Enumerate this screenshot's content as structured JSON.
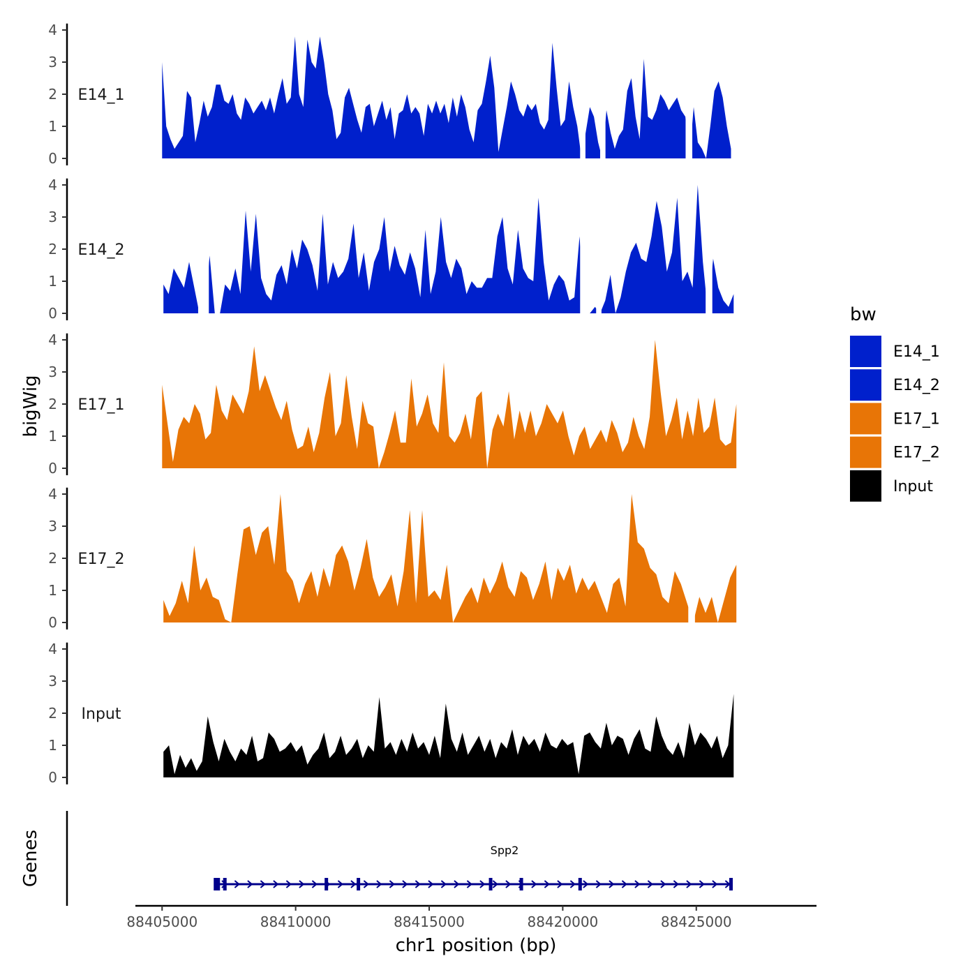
{
  "chart_data": {
    "type": "area",
    "title": "",
    "xlabel": "chr1 position (bp)",
    "ylabel": "bigWig",
    "genes_label": "Genes",
    "xlim": [
      88404000,
      88429500
    ],
    "ylim": [
      0,
      4.2
    ],
    "x_ticks": [
      88405000,
      88410000,
      88415000,
      88420000,
      88425000
    ],
    "x_tick_labels": [
      "88405000",
      "88410000",
      "88415000",
      "88420000",
      "88425000"
    ],
    "y_ticks": [
      0,
      1,
      2,
      3,
      4
    ],
    "y_tick_labels": [
      "0",
      "1",
      "2",
      "3",
      "4"
    ],
    "legend": {
      "title": "bw",
      "position": "right",
      "entries": [
        {
          "label": "E14_1",
          "color": "#0020CC"
        },
        {
          "label": "E14_2",
          "color": "#0020CC"
        },
        {
          "label": "E17_1",
          "color": "#E87506"
        },
        {
          "label": "E17_2",
          "color": "#E87506"
        },
        {
          "label": "Input",
          "color": "#000000"
        }
      ]
    },
    "series": [
      {
        "name": "E14_1",
        "color": "#0020CC",
        "start": 88405000,
        "end": 88426300,
        "values": [
          3.0,
          1.0,
          0.6,
          0.3,
          0.5,
          0.7,
          2.1,
          1.9,
          0.5,
          1.1,
          1.8,
          1.3,
          1.6,
          2.3,
          2.3,
          1.8,
          1.7,
          2.0,
          1.4,
          1.2,
          1.9,
          1.7,
          1.4,
          1.6,
          1.8,
          1.5,
          1.9,
          1.4,
          2.0,
          2.5,
          1.7,
          1.9,
          3.8,
          2.0,
          1.6,
          3.7,
          3.0,
          2.8,
          3.8,
          3.0,
          2.0,
          1.5,
          0.6,
          0.8,
          1.9,
          2.2,
          1.7,
          1.2,
          0.8,
          1.6,
          1.7,
          1.0,
          1.4,
          1.8,
          1.2,
          1.6,
          0.6,
          1.4,
          1.5,
          2.0,
          1.4,
          1.6,
          1.4,
          0.7,
          1.7,
          1.4,
          1.8,
          1.4,
          1.7,
          1.1,
          1.9,
          1.3,
          2.0,
          1.6,
          0.9,
          0.5,
          1.5,
          1.7,
          2.4,
          3.2,
          2.2,
          0.2,
          0.9,
          1.6,
          2.4,
          2.0,
          1.5,
          1.3,
          1.7,
          1.5,
          1.7,
          1.1,
          0.9,
          1.2,
          3.6,
          2.2,
          1.0,
          1.2,
          2.4,
          1.6,
          1.0,
          0.2,
          0.8,
          1.6,
          1.3,
          0.5,
          0.9,
          1.5,
          0.8,
          0.3,
          0.7,
          0.9,
          2.1,
          2.5,
          1.3,
          0.6,
          3.1,
          1.3,
          1.2,
          1.5,
          2.0,
          1.8,
          1.5,
          1.7,
          1.9,
          1.5,
          1.3,
          2.2,
          1.6,
          0.5,
          0.3,
          0.0,
          1.0,
          2.1,
          2.4,
          1.9,
          1.0,
          0.3
        ],
        "gaps": [
          [
            88420650,
            88420850
          ],
          [
            88421400,
            88421600
          ],
          [
            88424600,
            88424850
          ]
        ]
      },
      {
        "name": "E14_2",
        "color": "#0020CC",
        "start": 88405050,
        "end": 88426400,
        "values": [
          0.9,
          0.6,
          1.4,
          1.1,
          0.8,
          1.6,
          0.8,
          1.3,
          0.7,
          1.8,
          0.0,
          0.0,
          0.9,
          0.7,
          1.4,
          0.6,
          3.2,
          1.3,
          3.1,
          1.1,
          0.6,
          0.4,
          1.2,
          1.5,
          0.9,
          2.0,
          1.4,
          2.3,
          2.0,
          1.5,
          0.7,
          3.1,
          0.9,
          1.6,
          1.1,
          1.3,
          1.7,
          2.8,
          1.1,
          1.9,
          0.7,
          1.6,
          2.0,
          3.0,
          1.3,
          2.1,
          1.5,
          1.2,
          1.9,
          1.4,
          0.5,
          2.6,
          0.6,
          1.3,
          3.0,
          1.6,
          1.1,
          1.7,
          1.4,
          0.6,
          1.0,
          0.8,
          0.8,
          1.1,
          1.1,
          2.4,
          3.0,
          1.4,
          0.9,
          2.6,
          1.4,
          1.1,
          1.0,
          3.6,
          1.6,
          0.4,
          0.9,
          1.2,
          1.0,
          0.4,
          0.5,
          2.4,
          0.7,
          0.0,
          0.2,
          0.6,
          0.4,
          1.2,
          0.0,
          0.5,
          1.3,
          1.9,
          2.2,
          1.7,
          1.6,
          2.4,
          3.5,
          2.7,
          1.3,
          1.9,
          3.6,
          1.0,
          1.3,
          0.8,
          4.0,
          1.6,
          2.2,
          1.7,
          0.8,
          0.4,
          0.2,
          0.6
        ],
        "gaps": [
          [
            88406350,
            88406750
          ],
          [
            88420650,
            88420850
          ],
          [
            88421250,
            88421450
          ],
          [
            88425350,
            88425600
          ]
        ]
      },
      {
        "name": "E17_1",
        "color": "#E87506",
        "start": 88405000,
        "end": 88426500,
        "values": [
          2.6,
          1.4,
          0.2,
          1.2,
          1.6,
          1.4,
          2.0,
          1.7,
          0.9,
          1.1,
          2.6,
          1.8,
          1.5,
          2.3,
          2.0,
          1.7,
          2.4,
          3.8,
          2.4,
          2.9,
          2.4,
          1.9,
          1.5,
          2.1,
          1.2,
          0.6,
          0.7,
          1.3,
          0.5,
          1.1,
          2.2,
          3.0,
          1.0,
          1.4,
          2.9,
          1.6,
          0.6,
          2.1,
          1.4,
          1.3,
          0.0,
          0.5,
          1.1,
          1.8,
          0.8,
          0.8,
          2.8,
          1.3,
          1.7,
          2.3,
          1.4,
          1.1,
          3.3,
          1.0,
          0.8,
          1.1,
          1.7,
          0.9,
          2.2,
          2.4,
          0.0,
          1.2,
          1.7,
          1.3,
          2.4,
          0.9,
          1.8,
          1.1,
          1.8,
          1.0,
          1.4,
          2.0,
          1.7,
          1.4,
          1.8,
          1.0,
          0.4,
          1.0,
          1.3,
          0.6,
          0.9,
          1.2,
          0.8,
          1.5,
          1.1,
          0.5,
          0.8,
          1.6,
          1.0,
          0.6,
          1.6,
          4.0,
          2.4,
          1.0,
          1.5,
          2.2,
          0.9,
          1.8,
          1.0,
          2.2,
          1.1,
          1.3,
          2.2,
          0.9,
          0.7,
          0.8,
          2.0
        ],
        "gaps": []
      },
      {
        "name": "E17_2",
        "color": "#E87506",
        "start": 88405050,
        "end": 88426500,
        "values": [
          0.7,
          0.2,
          0.6,
          1.3,
          0.6,
          2.4,
          1.0,
          1.4,
          0.8,
          0.7,
          0.1,
          0.0,
          1.5,
          2.9,
          3.0,
          2.1,
          2.8,
          3.0,
          1.8,
          4.0,
          1.6,
          1.3,
          0.6,
          1.2,
          1.6,
          0.8,
          1.7,
          1.1,
          2.1,
          2.4,
          1.9,
          1.0,
          1.7,
          2.6,
          1.4,
          0.8,
          1.1,
          1.5,
          0.5,
          1.6,
          3.5,
          0.6,
          3.5,
          0.8,
          1.0,
          0.7,
          1.8,
          0.0,
          0.4,
          0.8,
          1.1,
          0.6,
          1.4,
          0.9,
          1.3,
          1.9,
          1.1,
          0.8,
          1.6,
          1.4,
          0.7,
          1.2,
          1.9,
          0.7,
          1.7,
          1.3,
          1.8,
          0.9,
          1.4,
          1.0,
          1.3,
          0.8,
          0.3,
          1.2,
          1.4,
          0.5,
          4.0,
          2.5,
          2.3,
          1.7,
          1.5,
          0.8,
          0.6,
          1.6,
          1.2,
          0.6,
          1.7,
          0.8,
          0.3,
          0.8,
          0.0,
          0.7,
          1.4,
          1.8
        ],
        "gaps": [
          [
            88424700,
            88424950
          ]
        ]
      },
      {
        "name": "Input",
        "color": "#000000",
        "start": 88405050,
        "end": 88426400,
        "values": [
          0.8,
          1.0,
          0.1,
          0.7,
          0.3,
          0.6,
          0.2,
          0.5,
          1.9,
          1.1,
          0.5,
          1.2,
          0.8,
          0.5,
          0.9,
          0.7,
          1.3,
          0.5,
          0.6,
          1.4,
          1.2,
          0.8,
          0.9,
          1.1,
          0.8,
          1.0,
          0.4,
          0.7,
          0.9,
          1.4,
          0.6,
          0.8,
          1.3,
          0.7,
          0.9,
          1.2,
          0.6,
          1.0,
          0.8,
          2.5,
          0.9,
          1.1,
          0.7,
          1.2,
          0.8,
          1.4,
          0.9,
          1.1,
          0.7,
          1.3,
          0.6,
          2.3,
          1.2,
          0.8,
          1.4,
          0.7,
          1.0,
          1.3,
          0.8,
          1.2,
          0.6,
          1.1,
          0.9,
          1.5,
          0.7,
          1.3,
          1.0,
          1.2,
          0.8,
          1.4,
          1.0,
          0.9,
          1.2,
          1.0,
          1.1,
          0.1,
          1.3,
          1.4,
          1.1,
          0.9,
          1.7,
          1.0,
          1.3,
          1.2,
          0.7,
          1.2,
          1.5,
          0.9,
          0.8,
          1.9,
          1.3,
          0.9,
          0.7,
          1.1,
          0.6,
          1.7,
          1.0,
          1.4,
          1.2,
          0.9,
          1.3,
          0.6,
          1.0,
          2.6
        ],
        "gaps": []
      }
    ],
    "gene_track": {
      "gene_name": "Spp2",
      "color": "#00008B",
      "start": 88406950,
      "end": 88426350,
      "strand": "+",
      "exons": [
        88407050,
        88407350,
        88411150,
        88412350,
        88417300,
        88418450,
        88420650,
        88426300
      ]
    }
  }
}
